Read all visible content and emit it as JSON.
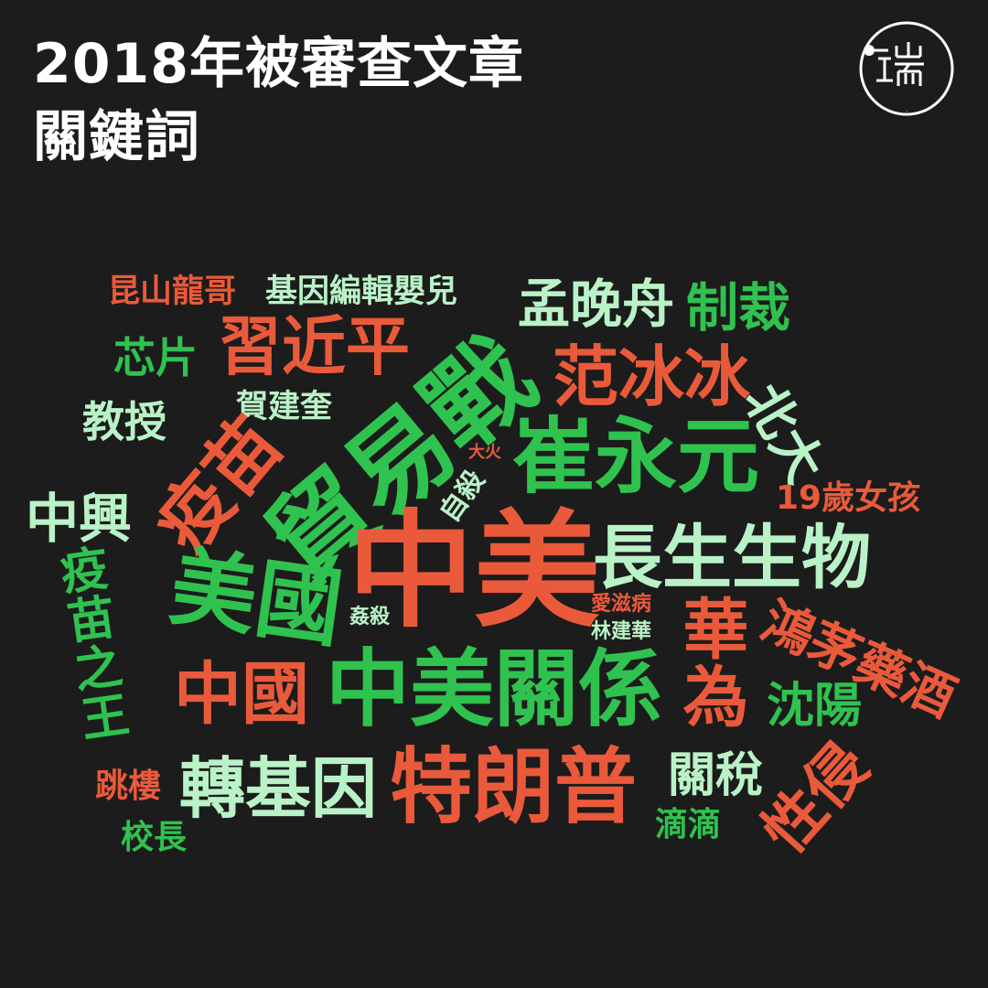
{
  "header": {
    "title_line1": "2018年被審查文章",
    "title_line2": "關鍵詞"
  },
  "logo": {
    "icon": "initium-logo",
    "text": "端"
  },
  "colors": {
    "background": "#1c1c1c",
    "red": "#ea5a3a",
    "green": "#2fc24f",
    "mint": "#b9f2c7",
    "title": "#ffffff"
  },
  "words": {
    "kunshan": "昆山龍哥",
    "gene_baby": "基因編輯嬰兒",
    "meng": "孟晚舟",
    "sanction": "制裁",
    "chip": "芯片",
    "xi": "習近平",
    "trade_war": "貿易戰",
    "fan": "范冰冰",
    "pku": "北大",
    "professor": "教授",
    "he": "賀建奎",
    "vaccine": "疫苗",
    "fire": "大火",
    "suicide": "自殺",
    "cui": "崔永元",
    "girl19": "19歲女孩",
    "zte": "中興",
    "sino_us": "中美",
    "changsheng": "長生生物",
    "vaccine_king": "疫苗之王",
    "usa": "美國",
    "rape": "姦殺",
    "aids": "愛滋病",
    "lin": "林建華",
    "huawei": "華為",
    "hongmao": "鴻茅藥酒",
    "china": "中國",
    "relations": "中美關係",
    "shenyang": "沈陽",
    "jump": "跳樓",
    "gmo": "轉基因",
    "trump": "特朗普",
    "tariff": "關稅",
    "sexual_assault": "性侵",
    "didi": "滴滴",
    "principal": "校長"
  }
}
